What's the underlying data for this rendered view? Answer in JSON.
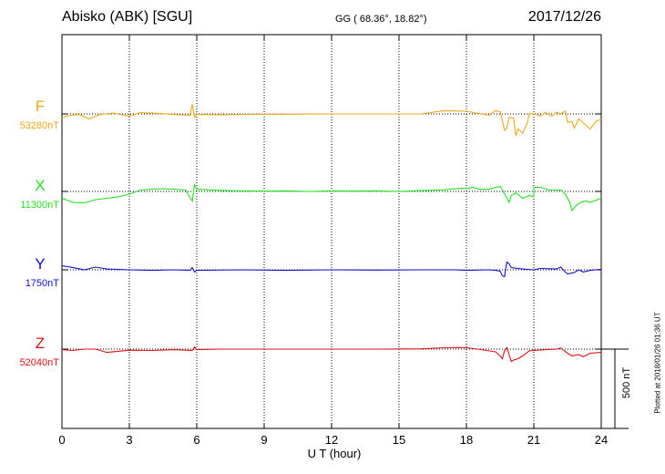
{
  "header": {
    "station": "Abisko (ABK)  [SGU]",
    "coords": "GG ( 68.36°,  18.82°)",
    "date": "2017/12/26"
  },
  "footer": {
    "plotted": "Plotted at 2018/01/26 01:36 UT",
    "scale_label": "500 nT"
  },
  "chart_data": {
    "type": "line",
    "xlabel": "U T (hour)",
    "xlim": [
      0,
      24
    ],
    "xticks": [
      "0",
      "3",
      "6",
      "9",
      "12",
      "15",
      "18",
      "21",
      "24"
    ],
    "scale_bar_nT": 500,
    "grid": true,
    "series": [
      {
        "name": "F",
        "baseline": "53280nT",
        "color": "#f0a818",
        "points": [
          [
            0,
            12
          ],
          [
            0.4,
            5
          ],
          [
            0.8,
            2
          ],
          [
            1.2,
            18
          ],
          [
            1.7,
            2
          ],
          [
            2.3,
            -3
          ],
          [
            3,
            8
          ],
          [
            3.5,
            -5
          ],
          [
            4,
            -3
          ],
          [
            5,
            2
          ],
          [
            5.7,
            5
          ],
          [
            5.8,
            -35
          ],
          [
            5.9,
            12
          ],
          [
            6,
            2
          ],
          [
            7,
            3
          ],
          [
            8,
            2
          ],
          [
            9,
            1
          ],
          [
            10,
            1
          ],
          [
            12,
            0
          ],
          [
            14,
            0
          ],
          [
            16,
            0
          ],
          [
            17,
            -12
          ],
          [
            18,
            -10
          ],
          [
            18.5,
            -2
          ],
          [
            19,
            4
          ],
          [
            19.3,
            -12
          ],
          [
            19.5,
            -8
          ],
          [
            19.7,
            60
          ],
          [
            19.8,
            52
          ],
          [
            19.9,
            12
          ],
          [
            20.1,
            15
          ],
          [
            20.2,
            80
          ],
          [
            20.3,
            55
          ],
          [
            20.5,
            70
          ],
          [
            20.7,
            35
          ],
          [
            20.8,
            -2
          ],
          [
            21,
            0
          ],
          [
            21.3,
            8
          ],
          [
            21.5,
            -5
          ],
          [
            21.8,
            8
          ],
          [
            22,
            -6
          ],
          [
            22.2,
            0
          ],
          [
            22.4,
            -10
          ],
          [
            22.5,
            30
          ],
          [
            22.7,
            28
          ],
          [
            22.8,
            52
          ],
          [
            23,
            18
          ],
          [
            23.2,
            32
          ],
          [
            23.5,
            55
          ],
          [
            23.8,
            25
          ],
          [
            24,
            20
          ]
        ]
      },
      {
        "name": "X",
        "baseline": "11300nT",
        "color": "#22e022",
        "points": [
          [
            0,
            25
          ],
          [
            0.5,
            40
          ],
          [
            1,
            42
          ],
          [
            1.5,
            30
          ],
          [
            2,
            25
          ],
          [
            2.5,
            20
          ],
          [
            3,
            10
          ],
          [
            3.5,
            -5
          ],
          [
            4,
            -8
          ],
          [
            4.5,
            -10
          ],
          [
            5,
            -8
          ],
          [
            5.5,
            -5
          ],
          [
            5.8,
            35
          ],
          [
            5.9,
            -25
          ],
          [
            6,
            -8
          ],
          [
            7,
            -4
          ],
          [
            8,
            -2
          ],
          [
            9,
            -1
          ],
          [
            10,
            -2
          ],
          [
            11,
            0
          ],
          [
            12,
            -2
          ],
          [
            13,
            -1
          ],
          [
            14,
            -2
          ],
          [
            15,
            0
          ],
          [
            16,
            -3
          ],
          [
            17,
            -6
          ],
          [
            17.8,
            -12
          ],
          [
            18,
            -10
          ],
          [
            18.3,
            -15
          ],
          [
            18.6,
            -8
          ],
          [
            19,
            -8
          ],
          [
            19.3,
            -15
          ],
          [
            19.5,
            -18
          ],
          [
            19.6,
            -5
          ],
          [
            19.8,
            25
          ],
          [
            19.9,
            40
          ],
          [
            20,
            15
          ],
          [
            20.2,
            5
          ],
          [
            20.5,
            25
          ],
          [
            20.8,
            15
          ],
          [
            21,
            20
          ],
          [
            21,
            -15
          ],
          [
            21.3,
            -15
          ],
          [
            21.7,
            -5
          ],
          [
            22,
            -5
          ],
          [
            22.2,
            -5
          ],
          [
            22.4,
            10
          ],
          [
            22.6,
            40
          ],
          [
            22.7,
            70
          ],
          [
            22.8,
            60
          ],
          [
            22.9,
            50
          ],
          [
            23.1,
            40
          ],
          [
            23.3,
            35
          ],
          [
            23.5,
            40
          ],
          [
            24,
            25
          ]
        ]
      },
      {
        "name": "Y",
        "baseline": "1750nT",
        "color": "#1010d0",
        "points": [
          [
            0,
            -15
          ],
          [
            0.5,
            -8
          ],
          [
            1,
            0
          ],
          [
            1.5,
            -10
          ],
          [
            2,
            -3
          ],
          [
            3,
            0
          ],
          [
            4,
            2
          ],
          [
            5,
            0
          ],
          [
            5.7,
            2
          ],
          [
            5.8,
            -8
          ],
          [
            5.9,
            8
          ],
          [
            6,
            2
          ],
          [
            8,
            0
          ],
          [
            10,
            2
          ],
          [
            12,
            0
          ],
          [
            14,
            1
          ],
          [
            16,
            0
          ],
          [
            17.5,
            0
          ],
          [
            18,
            2
          ],
          [
            19,
            0
          ],
          [
            19.3,
            2
          ],
          [
            19.5,
            5
          ],
          [
            19.6,
            22
          ],
          [
            19.7,
            25
          ],
          [
            19.75,
            -5
          ],
          [
            19.8,
            -28
          ],
          [
            19.9,
            -22
          ],
          [
            20,
            -8
          ],
          [
            20.3,
            -5
          ],
          [
            20.5,
            -3
          ],
          [
            21,
            0
          ],
          [
            21.3,
            -5
          ],
          [
            22,
            -3
          ],
          [
            22.2,
            -10
          ],
          [
            22.4,
            8
          ],
          [
            22.5,
            15
          ],
          [
            22.8,
            10
          ],
          [
            23,
            0
          ],
          [
            23.2,
            8
          ],
          [
            23.5,
            2
          ],
          [
            24,
            -2
          ]
        ]
      },
      {
        "name": "Z",
        "baseline": "52040nT",
        "color": "#e01010",
        "points": [
          [
            0,
            2
          ],
          [
            0.5,
            5
          ],
          [
            1,
            0
          ],
          [
            1.5,
            0
          ],
          [
            2,
            12
          ],
          [
            2.5,
            8
          ],
          [
            3,
            4
          ],
          [
            4,
            5
          ],
          [
            5,
            2
          ],
          [
            5.8,
            5
          ],
          [
            5.9,
            -8
          ],
          [
            6,
            2
          ],
          [
            7,
            0
          ],
          [
            8,
            0
          ],
          [
            9,
            0
          ],
          [
            12,
            0
          ],
          [
            14,
            0
          ],
          [
            16,
            -1
          ],
          [
            17,
            -5
          ],
          [
            17.7,
            -6
          ],
          [
            18,
            -5
          ],
          [
            18.5,
            0
          ],
          [
            19.3,
            10
          ],
          [
            19.5,
            25
          ],
          [
            19.6,
            35
          ],
          [
            19.7,
            5
          ],
          [
            19.8,
            -5
          ],
          [
            19.9,
            20
          ],
          [
            20,
            45
          ],
          [
            20.1,
            40
          ],
          [
            20.3,
            35
          ],
          [
            20.5,
            25
          ],
          [
            20.8,
            6
          ],
          [
            21,
            5
          ],
          [
            21.5,
            2
          ],
          [
            22,
            0
          ],
          [
            22.2,
            -4
          ],
          [
            22.5,
            15
          ],
          [
            22.7,
            25
          ],
          [
            23,
            20
          ],
          [
            23.2,
            28
          ],
          [
            23.5,
            15
          ],
          [
            24,
            12
          ]
        ]
      }
    ]
  }
}
